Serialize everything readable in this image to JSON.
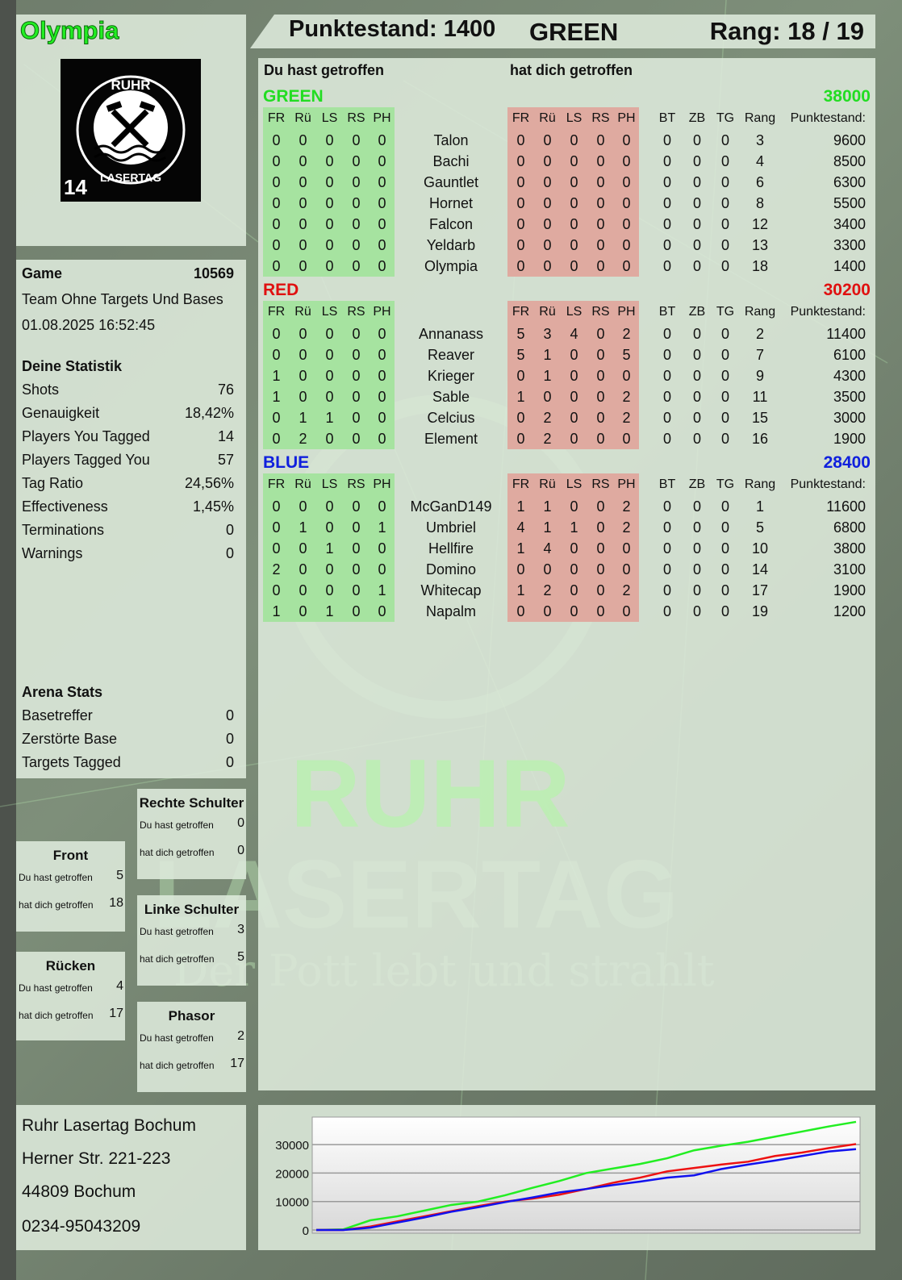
{
  "player": {
    "name": "Olympia",
    "logo": {
      "text_top": "RUHR",
      "text_bottom": "LASERTAG",
      "number": "14"
    }
  },
  "header": {
    "score_label": "Punktestand: 1400",
    "team": "GREEN",
    "rank_label": "Rang: 18 / 19"
  },
  "main": {
    "you_hit_label": "Du hast getroffen",
    "hit_you_label": "hat dich getroffen",
    "columns": [
      "FR",
      "Rü",
      "LS",
      "RS",
      "PH",
      "",
      "FR",
      "Rü",
      "LS",
      "RS",
      "PH",
      "BT",
      "ZB",
      "TG",
      "Rang",
      "Punktestand:"
    ],
    "teams": [
      {
        "name": "GREEN",
        "score": "38000",
        "color": "#22dd22",
        "players": [
          {
            "you": [
              0,
              0,
              0,
              0,
              0
            ],
            "name": "Talon",
            "them": [
              0,
              0,
              0,
              0,
              0
            ],
            "bt": 0,
            "zb": 0,
            "tg": 0,
            "rang": 3,
            "points": 9600
          },
          {
            "you": [
              0,
              0,
              0,
              0,
              0
            ],
            "name": "Bachi",
            "them": [
              0,
              0,
              0,
              0,
              0
            ],
            "bt": 0,
            "zb": 0,
            "tg": 0,
            "rang": 4,
            "points": 8500
          },
          {
            "you": [
              0,
              0,
              0,
              0,
              0
            ],
            "name": "Gauntlet",
            "them": [
              0,
              0,
              0,
              0,
              0
            ],
            "bt": 0,
            "zb": 0,
            "tg": 0,
            "rang": 6,
            "points": 6300
          },
          {
            "you": [
              0,
              0,
              0,
              0,
              0
            ],
            "name": "Hornet",
            "them": [
              0,
              0,
              0,
              0,
              0
            ],
            "bt": 0,
            "zb": 0,
            "tg": 0,
            "rang": 8,
            "points": 5500
          },
          {
            "you": [
              0,
              0,
              0,
              0,
              0
            ],
            "name": "Falcon",
            "them": [
              0,
              0,
              0,
              0,
              0
            ],
            "bt": 0,
            "zb": 0,
            "tg": 0,
            "rang": 12,
            "points": 3400
          },
          {
            "you": [
              0,
              0,
              0,
              0,
              0
            ],
            "name": "Yeldarb",
            "them": [
              0,
              0,
              0,
              0,
              0
            ],
            "bt": 0,
            "zb": 0,
            "tg": 0,
            "rang": 13,
            "points": 3300
          },
          {
            "you": [
              0,
              0,
              0,
              0,
              0
            ],
            "name": "Olympia",
            "them": [
              0,
              0,
              0,
              0,
              0
            ],
            "bt": 0,
            "zb": 0,
            "tg": 0,
            "rang": 18,
            "points": 1400
          }
        ]
      },
      {
        "name": "RED",
        "score": "30200",
        "color": "#e01010",
        "players": [
          {
            "you": [
              0,
              0,
              0,
              0,
              0
            ],
            "name": "Annanass",
            "them": [
              5,
              3,
              4,
              0,
              2
            ],
            "bt": 0,
            "zb": 0,
            "tg": 0,
            "rang": 2,
            "points": 11400
          },
          {
            "you": [
              0,
              0,
              0,
              0,
              0
            ],
            "name": "Reaver",
            "them": [
              5,
              1,
              0,
              0,
              5
            ],
            "bt": 0,
            "zb": 0,
            "tg": 0,
            "rang": 7,
            "points": 6100
          },
          {
            "you": [
              1,
              0,
              0,
              0,
              0
            ],
            "name": "Krieger",
            "them": [
              0,
              1,
              0,
              0,
              0
            ],
            "bt": 0,
            "zb": 0,
            "tg": 0,
            "rang": 9,
            "points": 4300
          },
          {
            "you": [
              1,
              0,
              0,
              0,
              0
            ],
            "name": "Sable",
            "them": [
              1,
              0,
              0,
              0,
              2
            ],
            "bt": 0,
            "zb": 0,
            "tg": 0,
            "rang": 11,
            "points": 3500
          },
          {
            "you": [
              0,
              1,
              1,
              0,
              0
            ],
            "name": "Celcius",
            "them": [
              0,
              2,
              0,
              0,
              2
            ],
            "bt": 0,
            "zb": 0,
            "tg": 0,
            "rang": 15,
            "points": 3000
          },
          {
            "you": [
              0,
              2,
              0,
              0,
              0
            ],
            "name": "Element",
            "them": [
              0,
              2,
              0,
              0,
              0
            ],
            "bt": 0,
            "zb": 0,
            "tg": 0,
            "rang": 16,
            "points": 1900
          }
        ]
      },
      {
        "name": "BLUE",
        "score": "28400",
        "color": "#1020dd",
        "players": [
          {
            "you": [
              0,
              0,
              0,
              0,
              0
            ],
            "name": "McGanD149",
            "them": [
              1,
              1,
              0,
              0,
              2
            ],
            "bt": 0,
            "zb": 0,
            "tg": 0,
            "rang": 1,
            "points": 11600
          },
          {
            "you": [
              0,
              1,
              0,
              0,
              1
            ],
            "name": "Umbriel",
            "them": [
              4,
              1,
              1,
              0,
              2
            ],
            "bt": 0,
            "zb": 0,
            "tg": 0,
            "rang": 5,
            "points": 6800
          },
          {
            "you": [
              0,
              0,
              1,
              0,
              0
            ],
            "name": "Hellfire",
            "them": [
              1,
              4,
              0,
              0,
              0
            ],
            "bt": 0,
            "zb": 0,
            "tg": 0,
            "rang": 10,
            "points": 3800
          },
          {
            "you": [
              2,
              0,
              0,
              0,
              0
            ],
            "name": "Domino",
            "them": [
              0,
              0,
              0,
              0,
              0
            ],
            "bt": 0,
            "zb": 0,
            "tg": 0,
            "rang": 14,
            "points": 3100
          },
          {
            "you": [
              0,
              0,
              0,
              0,
              1
            ],
            "name": "Whitecap",
            "them": [
              1,
              2,
              0,
              0,
              2
            ],
            "bt": 0,
            "zb": 0,
            "tg": 0,
            "rang": 17,
            "points": 1900
          },
          {
            "you": [
              1,
              0,
              1,
              0,
              0
            ],
            "name": "Napalm",
            "them": [
              0,
              0,
              0,
              0,
              0
            ],
            "bt": 0,
            "zb": 0,
            "tg": 0,
            "rang": 19,
            "points": 1200
          }
        ]
      }
    ]
  },
  "game": {
    "label": "Game",
    "id": "10569",
    "mode": "Team Ohne Targets Und Bases",
    "datetime": "01.08.2025 16:52:45"
  },
  "stats": {
    "title": "Deine Statistik",
    "rows": [
      {
        "label": "Shots",
        "value": "76"
      },
      {
        "label": "Genauigkeit",
        "value": "18,42%"
      },
      {
        "label": "Players You Tagged",
        "value": "14"
      },
      {
        "label": "Players Tagged You",
        "value": "57"
      },
      {
        "label": "Tag Ratio",
        "value": "24,56%"
      },
      {
        "label": "Effectiveness",
        "value": "1,45%"
      },
      {
        "label": "Terminations",
        "value": "0"
      },
      {
        "label": "Warnings",
        "value": "0"
      }
    ]
  },
  "arena": {
    "title": "Arena Stats",
    "rows": [
      {
        "label": "Basetreffer",
        "value": "0"
      },
      {
        "label": "Zerstörte Base",
        "value": "0"
      },
      {
        "label": "Targets Tagged",
        "value": "0"
      }
    ]
  },
  "hitboxes": [
    {
      "title": "Rechte Schulter",
      "you_label": "Du hast getroffen",
      "you": "0",
      "them_label": "hat dich getroffen",
      "them": "0"
    },
    {
      "title": "Front",
      "you_label": "Du hast getroffen",
      "you": "5",
      "them_label": "hat dich getroffen",
      "them": "18"
    },
    {
      "title": "Linke Schulter",
      "you_label": "Du hast getroffen",
      "you": "3",
      "them_label": "hat dich getroffen",
      "them": "5"
    },
    {
      "title": "Rücken",
      "you_label": "Du hast getroffen",
      "you": "4",
      "them_label": "hat dich getroffen",
      "them": "17"
    },
    {
      "title": "Phasor",
      "you_label": "Du hast getroffen",
      "you": "2",
      "them_label": "hat dich getroffen",
      "them": "17"
    }
  ],
  "address": {
    "name": "Ruhr Lasertag Bochum",
    "street": "Herner Str. 221-223",
    "city": "44809 Bochum",
    "phone": "0234-95043209"
  },
  "watermark": {
    "line1": "RUHR",
    "line2": "LASERTAG",
    "slogan": "Der Pott lebt und strahlt"
  },
  "chart_data": {
    "type": "line",
    "ylim": [
      0,
      40000
    ],
    "yticks": [
      "0",
      "10000",
      "20000",
      "30000"
    ],
    "grid": true,
    "x": [
      0,
      1,
      2,
      3,
      4,
      5,
      6,
      7,
      8,
      9,
      10,
      11,
      12,
      13,
      14,
      15,
      16,
      17,
      18,
      19,
      20
    ],
    "series": [
      {
        "color": "#22ee22",
        "values": [
          0,
          200,
          3400,
          4800,
          6800,
          8800,
          10000,
          12200,
          14800,
          17200,
          20000,
          21600,
          23200,
          25200,
          28000,
          29600,
          31000,
          32800,
          34600,
          36400,
          38000
        ]
      },
      {
        "color": "#ee1111",
        "values": [
          0,
          0,
          1200,
          3000,
          4800,
          6600,
          8400,
          10000,
          11000,
          12400,
          14400,
          16600,
          18400,
          20600,
          21800,
          23000,
          24000,
          26000,
          27200,
          28800,
          30200
        ]
      },
      {
        "color": "#1111ee",
        "values": [
          0,
          0,
          800,
          2600,
          4400,
          6400,
          8000,
          9800,
          11400,
          13200,
          14400,
          15800,
          17000,
          18400,
          19200,
          21400,
          23000,
          24400,
          26000,
          27600,
          28400
        ]
      }
    ]
  }
}
